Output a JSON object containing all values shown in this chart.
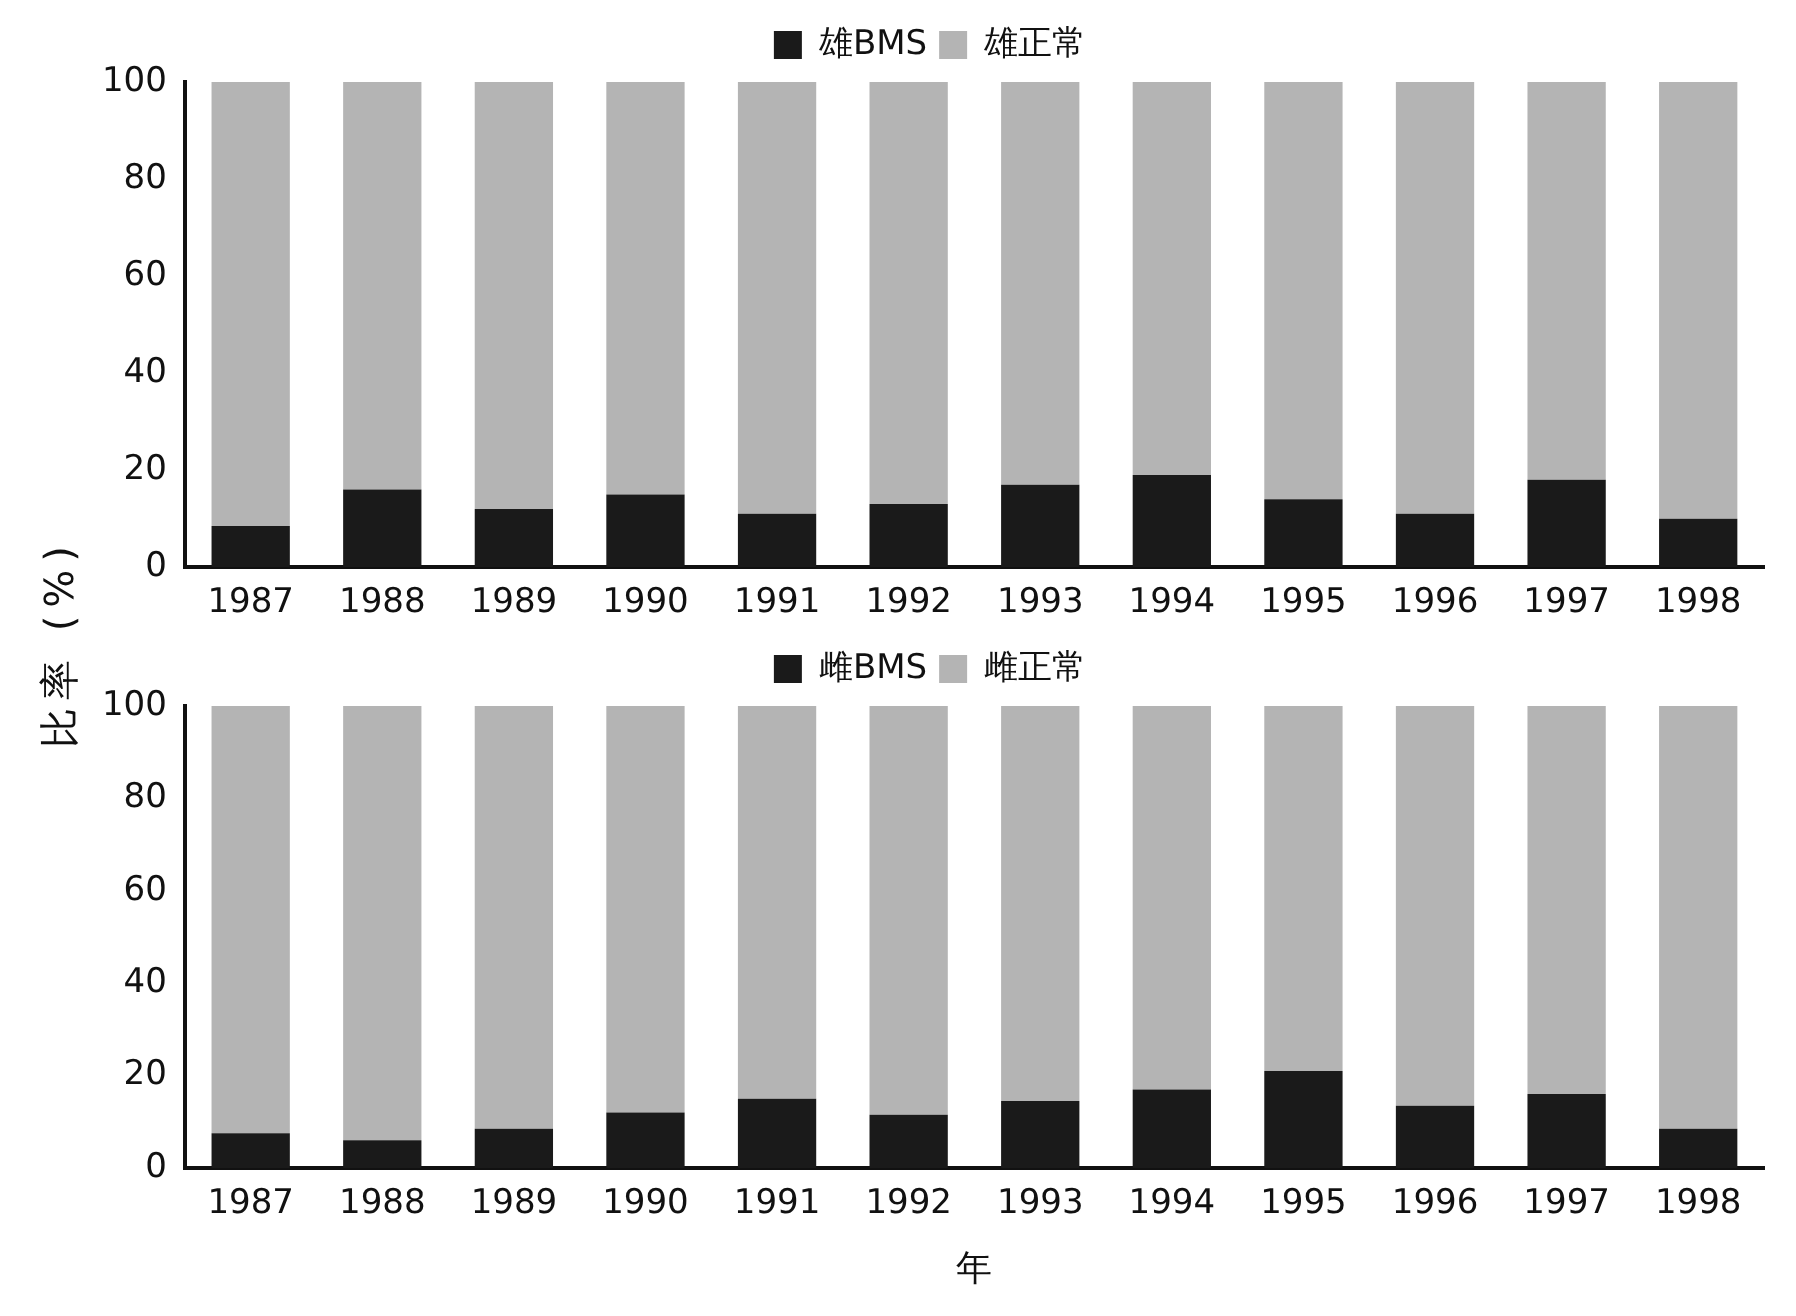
{
  "chart_data": [
    {
      "type": "bar",
      "stacked": true,
      "ylabel": "比率 (%)",
      "categories": [
        "1987",
        "1988",
        "1989",
        "1990",
        "1991",
        "1992",
        "1993",
        "1994",
        "1995",
        "1996",
        "1997",
        "1998"
      ],
      "ylim": [
        0,
        100
      ],
      "yticks": [
        0,
        20,
        40,
        60,
        80,
        100
      ],
      "legend": "top",
      "series": [
        {
          "name": "雄BMS",
          "color": "#1a1a1a",
          "values": [
            8.5,
            16,
            12,
            15,
            11,
            13,
            17,
            19,
            14,
            11,
            18,
            10
          ]
        },
        {
          "name": "雄正常",
          "color": "#b4b4b4",
          "values": [
            91.5,
            84,
            88,
            85,
            89,
            87,
            83,
            81,
            86,
            89,
            82,
            90
          ]
        }
      ]
    },
    {
      "type": "bar",
      "stacked": true,
      "xlabel": "年",
      "categories": [
        "1987",
        "1988",
        "1989",
        "1990",
        "1991",
        "1992",
        "1993",
        "1994",
        "1995",
        "1996",
        "1997",
        "1998"
      ],
      "ylim": [
        0,
        100
      ],
      "yticks": [
        0,
        20,
        40,
        60,
        80,
        100
      ],
      "legend": "top",
      "series": [
        {
          "name": "雌BMS",
          "color": "#1a1a1a",
          "values": [
            7.5,
            6,
            8.5,
            12,
            15,
            11.5,
            14.5,
            17,
            21,
            13.5,
            16,
            8.5
          ]
        },
        {
          "name": "雌正常",
          "color": "#b4b4b4",
          "values": [
            92.5,
            94,
            91.5,
            88,
            85,
            88.5,
            85.5,
            83,
            79,
            86.5,
            84,
            91.5
          ]
        }
      ]
    }
  ]
}
